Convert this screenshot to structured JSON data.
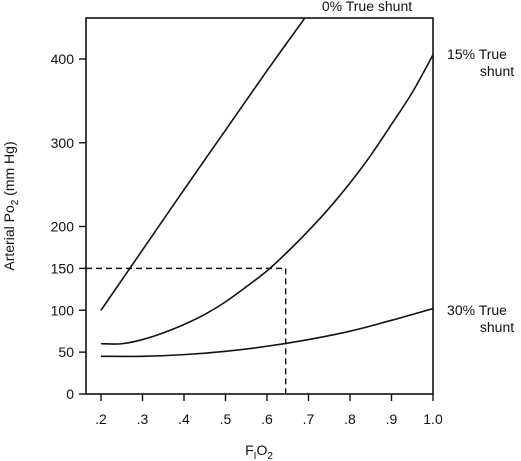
{
  "chart_data": {
    "type": "line",
    "xlabel": {
      "main": "F",
      "sub1": "I",
      "mid": "O",
      "sub2": "2"
    },
    "ylabel": {
      "main": "Arterial Po",
      "sub": "2",
      "tail": " (mm Hg)"
    },
    "xlim": [
      0.2,
      1.0
    ],
    "ylim": [
      0,
      400
    ],
    "x_ticks": [
      0.2,
      0.3,
      0.4,
      0.5,
      0.6,
      0.7,
      0.8,
      0.9,
      1.0
    ],
    "x_tick_labels": [
      ".2",
      ".3",
      ".4",
      ".5",
      ".6",
      ".7",
      ".8",
      ".9",
      "1.0"
    ],
    "y_ticks": [
      0,
      50,
      100,
      150,
      200,
      300,
      400
    ],
    "y_tick_labels": [
      "0",
      "50",
      "100",
      "150",
      "200",
      "300",
      "400"
    ],
    "grid": false,
    "series": [
      {
        "name": "0% True shunt",
        "label_lines": [
          "0% True shunt"
        ],
        "x": [
          0.2,
          0.3,
          0.4,
          0.5,
          0.6,
          0.7
        ],
        "y": [
          100,
          172,
          244,
          315,
          386,
          455
        ]
      },
      {
        "name": "15% True shunt",
        "label_lines": [
          "15% True",
          "shunt"
        ],
        "x": [
          0.2,
          0.25,
          0.3,
          0.35,
          0.4,
          0.45,
          0.5,
          0.55,
          0.6,
          0.65,
          0.7,
          0.75,
          0.8,
          0.85,
          0.9,
          0.95,
          1.0
        ],
        "y": [
          60,
          60,
          65,
          73,
          83,
          95,
          110,
          128,
          147,
          170,
          195,
          222,
          252,
          285,
          322,
          360,
          405
        ]
      },
      {
        "name": "30% True shunt",
        "label_lines": [
          "30% True",
          "shunt"
        ],
        "x": [
          0.2,
          0.3,
          0.4,
          0.5,
          0.6,
          0.7,
          0.8,
          0.9,
          1.0
        ],
        "y": [
          45,
          45,
          47,
          51,
          57,
          65,
          75,
          88,
          102
        ]
      }
    ],
    "reference_lines": {
      "fio2": 0.645,
      "po2": 150
    }
  }
}
